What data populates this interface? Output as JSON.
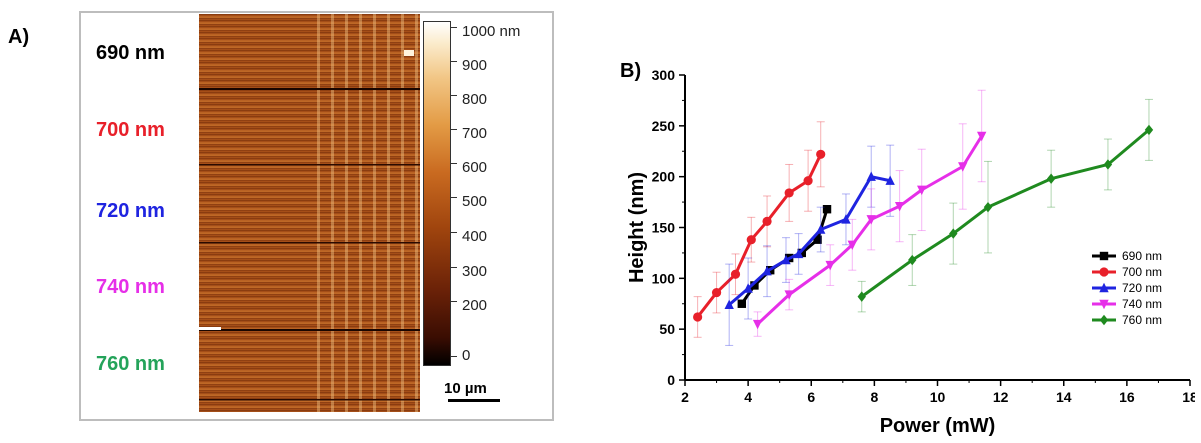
{
  "panel_a": {
    "label": "A)",
    "wavelength_labels": [
      {
        "text": "690 nm",
        "color": "#000000"
      },
      {
        "text": "700 nm",
        "color": "#e8202a"
      },
      {
        "text": "720 nm",
        "color": "#1f24e0"
      },
      {
        "text": "740 nm",
        "color": "#e62fe8"
      },
      {
        "text": "760 nm",
        "color": "#24a35a"
      }
    ],
    "colorbar_labels": [
      "1000 nm",
      "900",
      "800",
      "700",
      "600",
      "500",
      "400",
      "300",
      "200",
      "0"
    ],
    "scale_bar_label": "10 µm"
  },
  "chart_data": {
    "type": "line",
    "panel_label": "B)",
    "xlabel": "Power (mW)",
    "ylabel": "Height (nm)",
    "xlim": [
      2,
      18
    ],
    "ylim": [
      0,
      300
    ],
    "xticks": [
      2,
      4,
      6,
      8,
      10,
      12,
      14,
      16,
      18
    ],
    "yticks": [
      0,
      50,
      100,
      150,
      200,
      250,
      300
    ],
    "legend_position": "center-right",
    "series": [
      {
        "name": "690 nm",
        "color": "#000000",
        "marker": "square",
        "x": [
          3.8,
          4.2,
          4.7,
          5.3,
          5.7,
          6.2,
          6.5
        ],
        "y": [
          75,
          93,
          108,
          120,
          125,
          138,
          168
        ],
        "err": [
          0,
          0,
          0,
          0,
          0,
          0,
          0
        ]
      },
      {
        "name": "700 nm",
        "color": "#e8202a",
        "marker": "circle",
        "x": [
          2.4,
          3.0,
          3.6,
          4.1,
          4.6,
          5.3,
          5.9,
          6.3
        ],
        "y": [
          62,
          86,
          104,
          138,
          156,
          184,
          196,
          222
        ],
        "err": [
          20,
          20,
          20,
          22,
          25,
          28,
          30,
          32
        ]
      },
      {
        "name": "720 nm",
        "color": "#1f24e0",
        "marker": "triangle-up",
        "x": [
          3.4,
          4.0,
          4.6,
          5.2,
          5.6,
          6.3,
          7.1,
          7.9,
          8.5
        ],
        "y": [
          74,
          90,
          107,
          118,
          124,
          148,
          158,
          200,
          196
        ],
        "err": [
          40,
          30,
          25,
          22,
          20,
          22,
          25,
          30,
          35
        ]
      },
      {
        "name": "740 nm",
        "color": "#e62fe8",
        "marker": "triangle-down",
        "x": [
          4.3,
          5.3,
          6.6,
          7.3,
          7.9,
          8.8,
          9.5,
          10.8,
          11.4
        ],
        "y": [
          55,
          84,
          113,
          133,
          158,
          171,
          187,
          210,
          240
        ],
        "err": [
          12,
          15,
          20,
          25,
          30,
          35,
          40,
          42,
          45
        ]
      },
      {
        "name": "760 nm",
        "color": "#1f8a1f",
        "marker": "diamond",
        "x": [
          7.6,
          9.2,
          10.5,
          11.6,
          13.6,
          15.4,
          16.7
        ],
        "y": [
          82,
          118,
          144,
          170,
          198,
          212,
          246
        ],
        "err": [
          15,
          25,
          30,
          45,
          28,
          25,
          30
        ]
      }
    ]
  }
}
